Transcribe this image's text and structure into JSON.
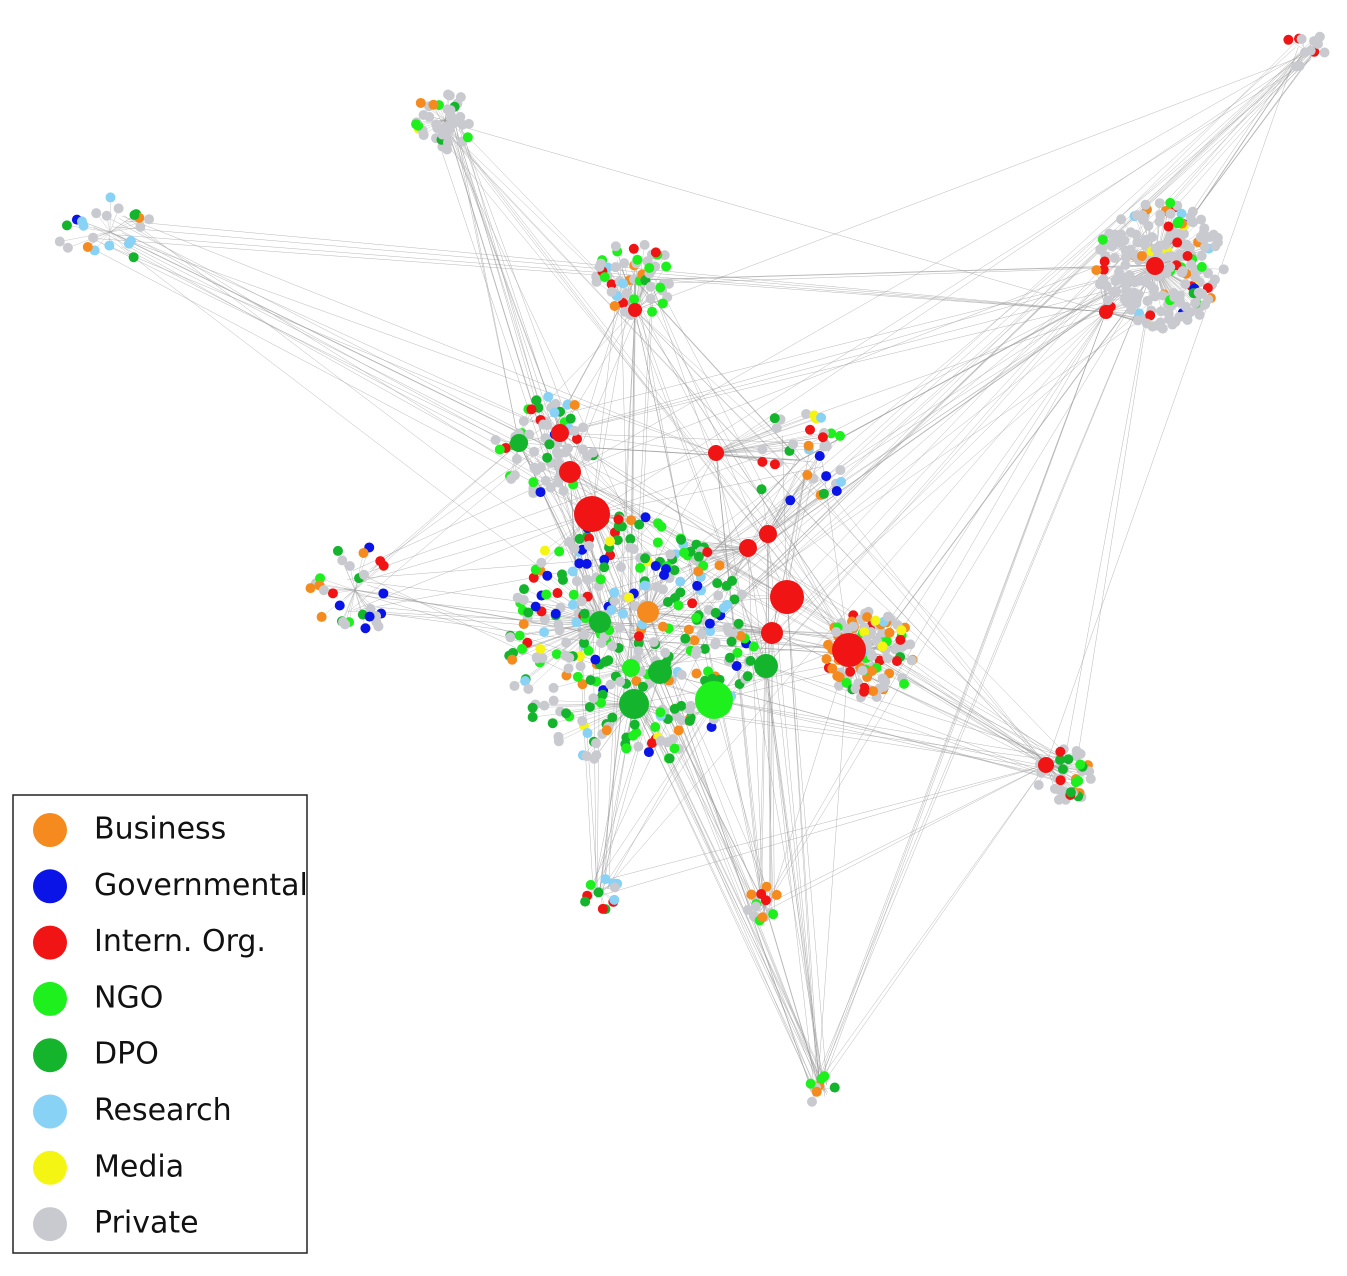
{
  "legend": {
    "items": [
      {
        "label": "Business",
        "color": "#f58b1f"
      },
      {
        "label": "Governmental",
        "color": "#0a14e6"
      },
      {
        "label": "Intern. Org.",
        "color": "#f01414"
      },
      {
        "label": "NGO",
        "color": "#1ef01e"
      },
      {
        "label": "DPO",
        "color": "#14b42d"
      },
      {
        "label": "Research",
        "color": "#87d2f5"
      },
      {
        "label": "Media",
        "color": "#f5f514"
      },
      {
        "label": "Private",
        "color": "#c8cacf"
      }
    ]
  }
}
